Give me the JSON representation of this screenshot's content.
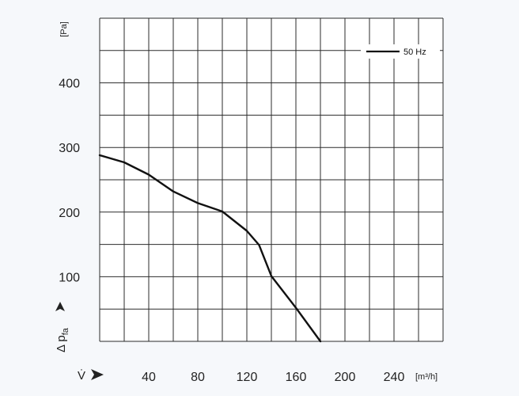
{
  "chart_data": {
    "type": "line",
    "x_unit": "[m³/h]",
    "y_unit": "[Pa]",
    "x_symbol": "V̇",
    "y_symbol_main": "Δ p",
    "y_symbol_sub": "fa",
    "xlim": [
      0,
      280
    ],
    "ylim": [
      0,
      500
    ],
    "x_ticks": [
      40,
      80,
      120,
      160,
      200,
      240
    ],
    "y_ticks": [
      100,
      200,
      300,
      400
    ],
    "grid": true,
    "legend_position": "top-right",
    "series": [
      {
        "name": "50 Hz",
        "color": "#111111",
        "x": [
          0,
          20,
          40,
          60,
          80,
          100,
          120,
          130,
          140,
          160,
          180
        ],
        "y": [
          288,
          277,
          258,
          232,
          214,
          201,
          171,
          149,
          101,
          52,
          0
        ]
      }
    ]
  }
}
